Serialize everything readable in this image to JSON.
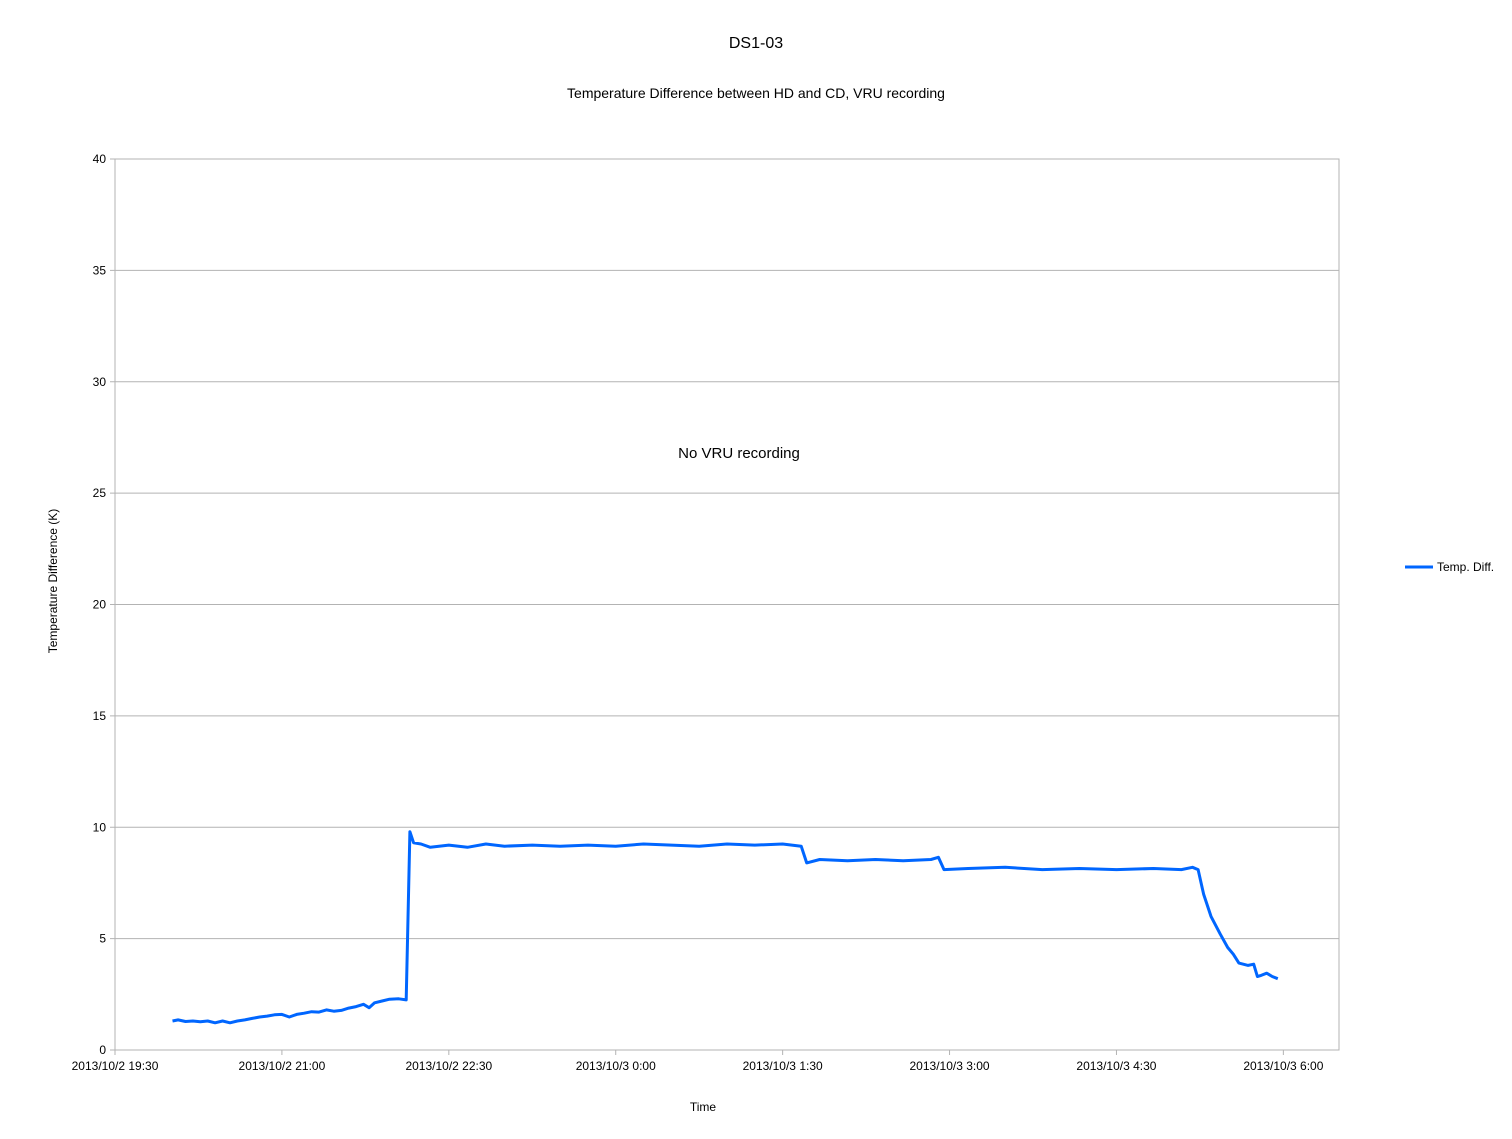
{
  "chart_data": {
    "type": "line",
    "title": "DS1-03",
    "subtitle": "Temperature Difference between HD and CD, VRU recording",
    "xlabel": "Time",
    "ylabel": "Temperature Difference (K)",
    "ylim": [
      0,
      40
    ],
    "yticks": [
      0,
      5,
      10,
      15,
      20,
      25,
      30,
      35,
      40
    ],
    "xlim": [
      "2013/10/2 19:30",
      "2013/10/3 6:30"
    ],
    "xtick_labels": [
      "2013/10/2 19:30",
      "2013/10/2 21:00",
      "2013/10/2 22:30",
      "2013/10/3 0:00",
      "2013/10/3 1:30",
      "2013/10/3 3:00",
      "2013/10/3 4:30",
      "2013/10/3 6:00"
    ],
    "grid": "horizontal",
    "legend": "right",
    "annotation": "No VRU recording",
    "series": [
      {
        "name": "Temp. Diff.",
        "color": "#0066ff",
        "points": [
          [
            "2013/10/2 20:01",
            1.3
          ],
          [
            "2013/10/2 20:04",
            1.35
          ],
          [
            "2013/10/2 20:08",
            1.28
          ],
          [
            "2013/10/2 20:12",
            1.3
          ],
          [
            "2013/10/2 20:16",
            1.27
          ],
          [
            "2013/10/2 20:20",
            1.3
          ],
          [
            "2013/10/2 20:24",
            1.22
          ],
          [
            "2013/10/2 20:28",
            1.3
          ],
          [
            "2013/10/2 20:32",
            1.22
          ],
          [
            "2013/10/2 20:36",
            1.3
          ],
          [
            "2013/10/2 20:40",
            1.35
          ],
          [
            "2013/10/2 20:44",
            1.42
          ],
          [
            "2013/10/2 20:48",
            1.48
          ],
          [
            "2013/10/2 20:52",
            1.52
          ],
          [
            "2013/10/2 20:56",
            1.58
          ],
          [
            "2013/10/2 21:00",
            1.6
          ],
          [
            "2013/10/2 21:04",
            1.48
          ],
          [
            "2013/10/2 21:08",
            1.6
          ],
          [
            "2013/10/2 21:12",
            1.65
          ],
          [
            "2013/10/2 21:16",
            1.72
          ],
          [
            "2013/10/2 21:20",
            1.7
          ],
          [
            "2013/10/2 21:24",
            1.8
          ],
          [
            "2013/10/2 21:28",
            1.74
          ],
          [
            "2013/10/2 21:32",
            1.78
          ],
          [
            "2013/10/2 21:36",
            1.88
          ],
          [
            "2013/10/2 21:40",
            1.95
          ],
          [
            "2013/10/2 21:44",
            2.05
          ],
          [
            "2013/10/2 21:47",
            1.9
          ],
          [
            "2013/10/2 21:50",
            2.12
          ],
          [
            "2013/10/2 21:54",
            2.2
          ],
          [
            "2013/10/2 21:58",
            2.28
          ],
          [
            "2013/10/2 22:03",
            2.3
          ],
          [
            "2013/10/2 22:07",
            2.25
          ],
          [
            "2013/10/2 22:09",
            9.8
          ],
          [
            "2013/10/2 22:11",
            9.3
          ],
          [
            "2013/10/2 22:15",
            9.25
          ],
          [
            "2013/10/2 22:20",
            9.1
          ],
          [
            "2013/10/2 22:30",
            9.2
          ],
          [
            "2013/10/2 22:40",
            9.1
          ],
          [
            "2013/10/2 22:50",
            9.25
          ],
          [
            "2013/10/2 23:00",
            9.15
          ],
          [
            "2013/10/2 23:15",
            9.2
          ],
          [
            "2013/10/2 23:30",
            9.15
          ],
          [
            "2013/10/2 23:45",
            9.2
          ],
          [
            "2013/10/3 0:00",
            9.15
          ],
          [
            "2013/10/3 0:15",
            9.25
          ],
          [
            "2013/10/3 0:30",
            9.2
          ],
          [
            "2013/10/3 0:45",
            9.15
          ],
          [
            "2013/10/3 1:00",
            9.25
          ],
          [
            "2013/10/3 1:15",
            9.2
          ],
          [
            "2013/10/3 1:30",
            9.25
          ],
          [
            "2013/10/3 1:40",
            9.15
          ],
          [
            "2013/10/3 1:43",
            8.4
          ],
          [
            "2013/10/3 1:50",
            8.55
          ],
          [
            "2013/10/3 2:05",
            8.5
          ],
          [
            "2013/10/3 2:20",
            8.55
          ],
          [
            "2013/10/3 2:35",
            8.5
          ],
          [
            "2013/10/3 2:50",
            8.55
          ],
          [
            "2013/10/3 2:54",
            8.65
          ],
          [
            "2013/10/3 2:57",
            8.1
          ],
          [
            "2013/10/3 3:10",
            8.15
          ],
          [
            "2013/10/3 3:30",
            8.2
          ],
          [
            "2013/10/3 3:50",
            8.1
          ],
          [
            "2013/10/3 4:10",
            8.15
          ],
          [
            "2013/10/3 4:30",
            8.1
          ],
          [
            "2013/10/3 4:50",
            8.15
          ],
          [
            "2013/10/3 5:05",
            8.1
          ],
          [
            "2013/10/3 5:11",
            8.2
          ],
          [
            "2013/10/3 5:14",
            8.1
          ],
          [
            "2013/10/3 5:17",
            7.0
          ],
          [
            "2013/10/3 5:21",
            6.0
          ],
          [
            "2013/10/3 5:26",
            5.2
          ],
          [
            "2013/10/3 5:30",
            4.6
          ],
          [
            "2013/10/3 5:33",
            4.3
          ],
          [
            "2013/10/3 5:36",
            3.9
          ],
          [
            "2013/10/3 5:41",
            3.8
          ],
          [
            "2013/10/3 5:44",
            3.85
          ],
          [
            "2013/10/3 5:46",
            3.3
          ],
          [
            "2013/10/3 5:48",
            3.35
          ],
          [
            "2013/10/3 5:51",
            3.45
          ],
          [
            "2013/10/3 5:54",
            3.3
          ],
          [
            "2013/10/3 5:57",
            3.2
          ]
        ]
      }
    ]
  }
}
